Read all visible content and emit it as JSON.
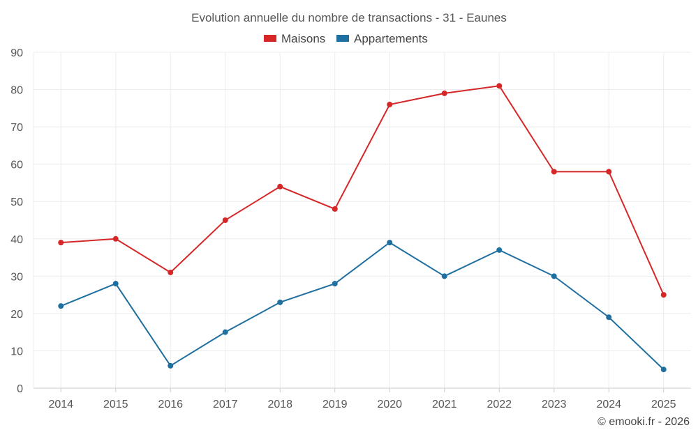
{
  "chart_data": {
    "type": "line",
    "title": "Evolution annuelle du nombre de transactions - 31 - Eaunes",
    "categories": [
      "2014",
      "2015",
      "2016",
      "2017",
      "2018",
      "2019",
      "2020",
      "2021",
      "2022",
      "2023",
      "2024",
      "2025"
    ],
    "series": [
      {
        "name": "Maisons",
        "color": "#d62728",
        "values": [
          39,
          40,
          31,
          45,
          54,
          48,
          76,
          79,
          81,
          58,
          58,
          25
        ]
      },
      {
        "name": "Appartements",
        "color": "#1f6fa0",
        "values": [
          22,
          28,
          6,
          15,
          23,
          28,
          39,
          30,
          37,
          30,
          19,
          5
        ]
      }
    ],
    "ylim": [
      0,
      90
    ],
    "yticks": [
      0,
      10,
      20,
      30,
      40,
      50,
      60,
      70,
      80,
      90
    ],
    "xlabel": "",
    "ylabel": "",
    "grid": true,
    "legend": "top-center"
  },
  "credit": "© emooki.fr - 2026"
}
